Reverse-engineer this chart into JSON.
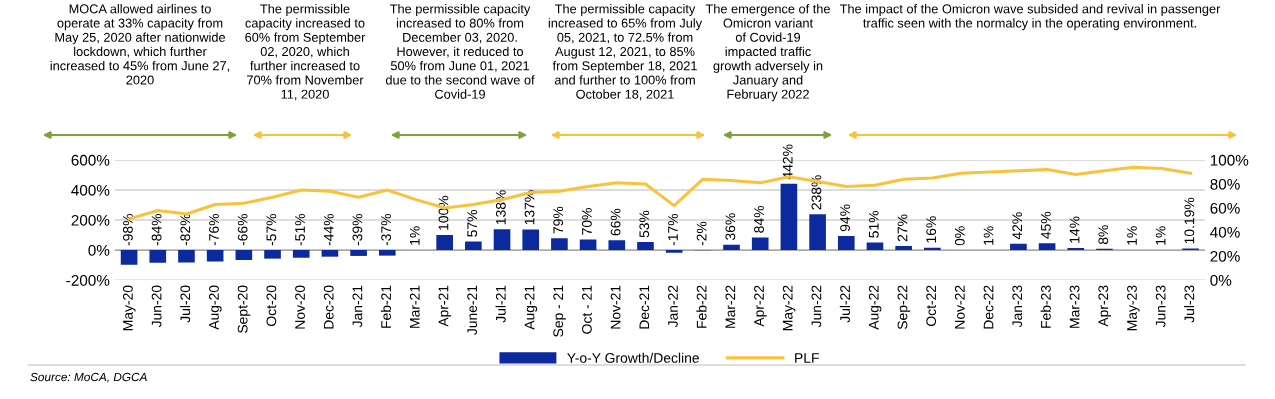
{
  "chart_data": {
    "type": "bar",
    "categories": [
      "May-20",
      "Jun-20",
      "Jul-20",
      "Aug-20",
      "Sept-20",
      "Oct-20",
      "Nov-20",
      "Dec-20",
      "Jan-21",
      "Feb-21",
      "Mar-21",
      "Apr-21",
      "June-21",
      "Jul-21",
      "Aug-21",
      "Sep - 21",
      "Oct - 21",
      "Nov-21",
      "Dec-21",
      "Jan-22",
      "Feb-22",
      "Mar-22",
      "Apr-22",
      "May-22",
      "Jun-22",
      "Jul-22",
      "Aug-22",
      "Sep-22",
      "Oct-22",
      "Nov-22",
      "Dec-22",
      "Jan-23",
      "Feb-23",
      "Mar-23",
      "Apr-23",
      "May-23",
      "Jun-23",
      "Jul-23"
    ],
    "series": [
      {
        "name": "Y-o-Y Growth/Decline",
        "color": "#0b2a9e",
        "values": [
          -98,
          -84,
          -82,
          -76,
          -66,
          -57,
          -51,
          -44,
          -39,
          -37,
          1,
          100,
          57,
          138,
          137,
          79,
          70,
          66,
          53,
          -17,
          -2,
          36,
          84,
          442,
          238,
          94,
          51,
          27,
          16,
          0,
          1,
          42,
          45,
          14,
          8,
          1,
          1,
          10.19
        ],
        "value_labels": [
          "-98%",
          "-84%",
          "-82%",
          "-76%",
          "-66%",
          "-57%",
          "-51%",
          "-44%",
          "-39%",
          "-37%",
          "1%",
          "100%",
          "57%",
          "138%",
          "137%",
          "79%",
          "70%",
          "66%",
          "53%",
          "-17%",
          "-2%",
          "36%",
          "84%",
          "442%",
          "238%",
          "94%",
          "51%",
          "27%",
          "16%",
          "0%",
          "1%",
          "42%",
          "45%",
          "14%",
          "8%",
          "1%",
          "1%",
          "10.19%"
        ]
      },
      {
        "name": "PLF",
        "type": "line",
        "axis": "y2",
        "color": "#f9c23c",
        "values": [
          51,
          58,
          55,
          63,
          64,
          69,
          75,
          74,
          69,
          75,
          67,
          60,
          63,
          67,
          73,
          74,
          78,
          81,
          80,
          62,
          84,
          83,
          81,
          86,
          82,
          78,
          79,
          84,
          85,
          89,
          90,
          91,
          92,
          88,
          91,
          94,
          93,
          89
        ]
      }
    ],
    "ylim": [
      -200,
      600
    ],
    "yticks": [
      {
        "value": -200,
        "label": "-200%"
      },
      {
        "value": 0,
        "label": "0%"
      },
      {
        "value": 200,
        "label": "200%"
      },
      {
        "value": 400,
        "label": "400%"
      },
      {
        "value": 600,
        "label": "600%"
      }
    ],
    "y2lim": [
      0,
      100
    ],
    "y2ticks": [
      {
        "value": 0,
        "label": "0%"
      },
      {
        "value": 20,
        "label": "20%"
      },
      {
        "value": 40,
        "label": "40%"
      },
      {
        "value": 60,
        "label": "60%"
      },
      {
        "value": 80,
        "label": "80%"
      },
      {
        "value": 100,
        "label": "100%"
      }
    ],
    "grid": "y",
    "legend": "bottom",
    "annotations": [
      "MOCA allowed airlines to\noperate at 33% capacity from\nMay 25, 2020 after nationwide\nlockdown, which further\nincreased to 45% from June 27,\n2020",
      "The permissible\ncapacity increased to\n60% from September\n02, 2020, which\nfurther increased to\n70% from November\n11, 2020",
      "The permissible capacity\nincreased to 80% from\nDecember 03, 2020.\nHowever, it reduced to\n50% from June 01, 2021\ndue to the second wave of\nCovid-19",
      "The permissible capacity\nincreased to 65% from July\n05, 2021, to 72.5% from\nAugust 12, 2021, to 85%\nfrom September 18, 2021\nand further to 100% from\nOctober 18, 2021",
      "The emergence of the\nOmicron variant\nof Covid-19\nimpacted traffic\ngrowth adversely in\nJanuary and\nFebruary 2022",
      "The impact of the Omicron wave subsided and revival in passenger\ntraffic seen with the normalcy in the operating environment.",
      "Source: MoCA, DGCA"
    ]
  }
}
